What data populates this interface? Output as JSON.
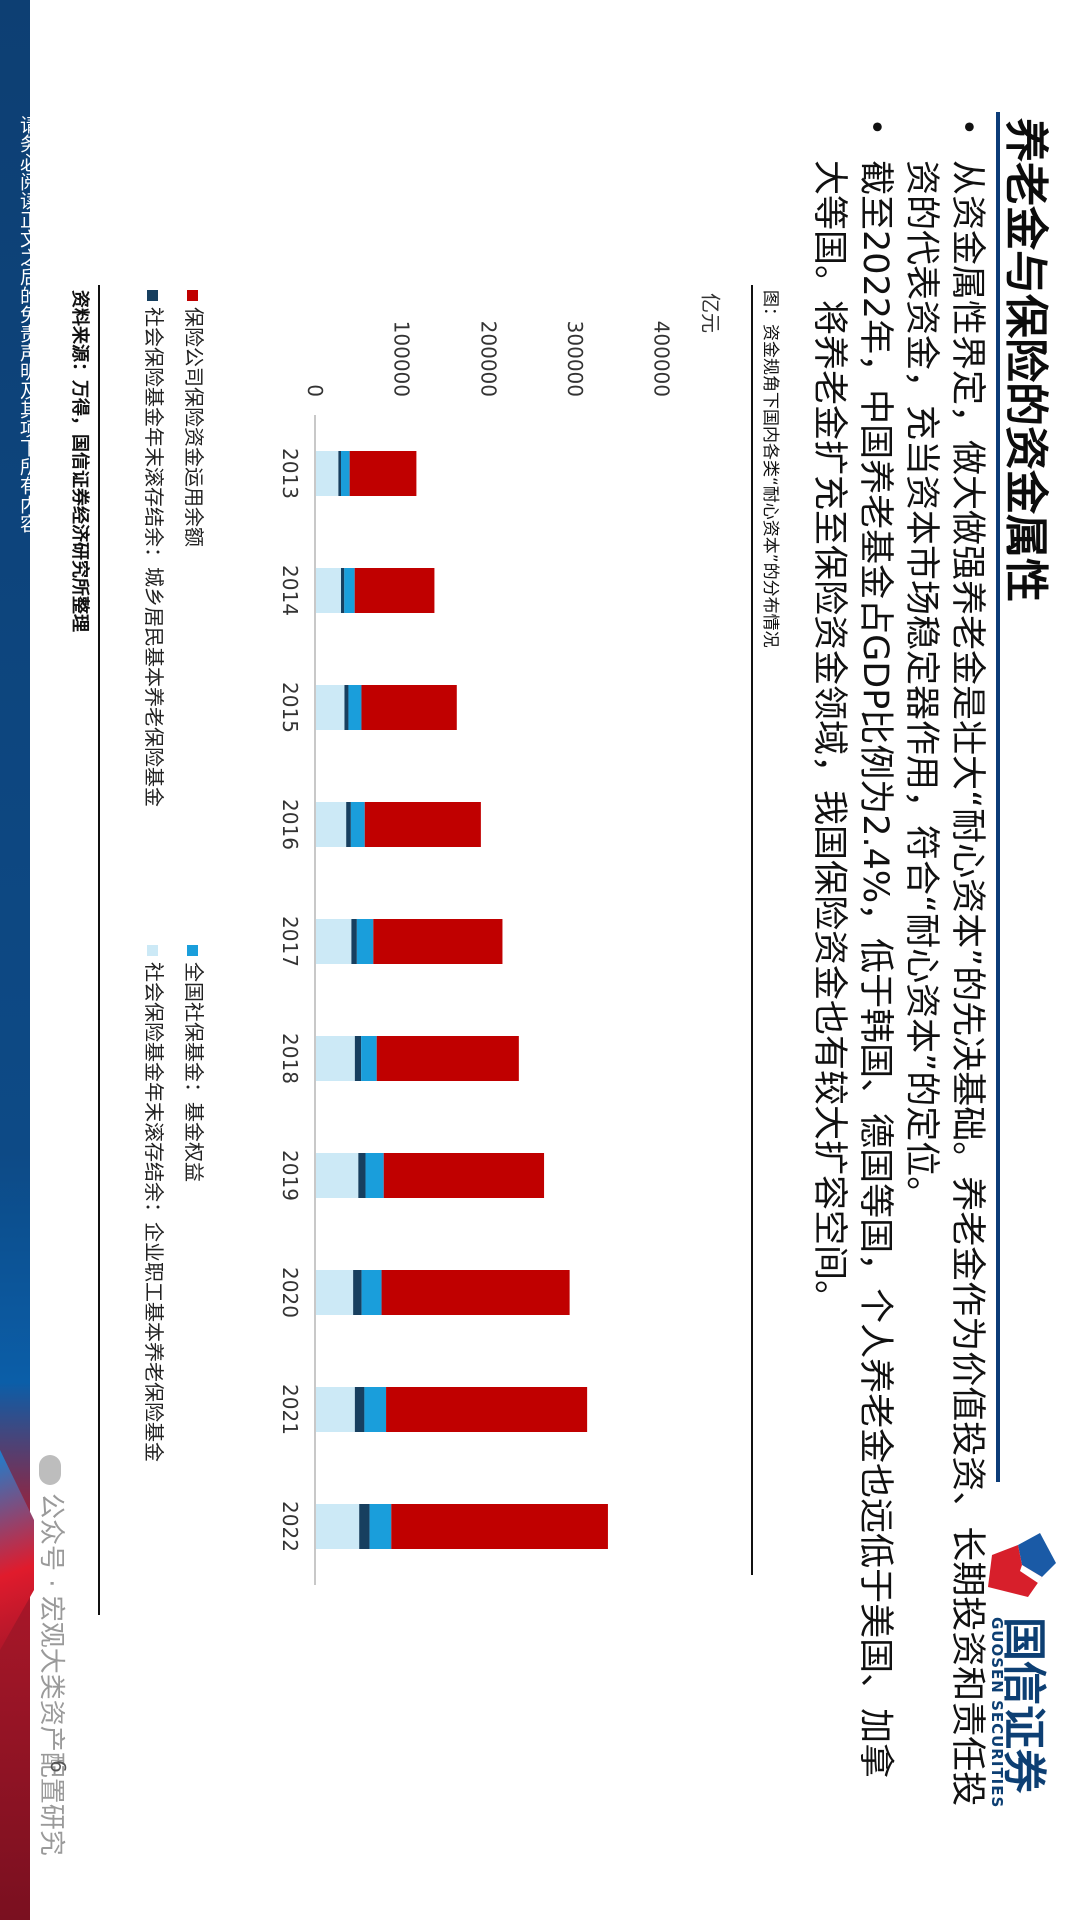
{
  "disclaimer": "请务必阅读正文之后的免责声明及其项下所有内容",
  "title": "养老金与保险的资金属性",
  "logo": {
    "cn": "国信证券",
    "en": "GUOSEN SECURITIES"
  },
  "bullets": [
    "从资金属性界定，做大做强养老金是壮大“耐心资本”的先决基础。养老金作为价值投资、长期投资和责任投资的代表资金，充当资本市场稳定器作用，符合“耐心资本”的定位。",
    "截至2022年，中国养老基金占GDP比例为2.4%，低于韩国、德国等国，个人养老金也远低于美国、加拿大等国。将养老金扩充至保险资金领域，我国保险资金也有较大扩容空间。"
  ],
  "chart_title": "图：资金规角下国内各类“耐心资本”的分布情况",
  "source": "资料来源：万得，国信证券经济研究所整理",
  "page_number": "6",
  "watermark": "公众号 · 宏观大类资产配置研究",
  "colors": {
    "insurance": "#c00000",
    "ssf": "#1a9edb",
    "urban_rural": "#173f5f",
    "enterprise": "#cce9f6"
  },
  "chart_data": {
    "type": "bar",
    "stacked": true,
    "orientation": "vertical",
    "ylabel": "亿元",
    "ylim": [
      0,
      450000
    ],
    "yticks": [
      "0",
      "100000",
      "200000",
      "300000",
      "400000"
    ],
    "ytick_values": [
      0,
      100000,
      200000,
      300000,
      400000
    ],
    "categories": [
      "2013",
      "2014",
      "2015",
      "2016",
      "2017",
      "2018",
      "2019",
      "2020",
      "2021",
      "2022"
    ],
    "series": [
      {
        "name": "社会保险基金年末滚存结余：企业职工基本养老保险基金",
        "color_key": "enterprise",
        "values": [
          27000,
          30000,
          34000,
          36000,
          42000,
          46000,
          50000,
          44000,
          46000,
          51000
        ]
      },
      {
        "name": "社会保险基金年末滚存结余：城乡居民基本养老保险基金",
        "color_key": "urban_rural",
        "values": [
          3000,
          3800,
          4600,
          5400,
          6300,
          7200,
          8300,
          9800,
          11000,
          12000
        ]
      },
      {
        "name": "全国社保基金：基金权益",
        "color_key": "ssf",
        "values": [
          10000,
          12000,
          15000,
          16000,
          19000,
          18000,
          21000,
          23000,
          25000,
          25000
        ]
      },
      {
        "name": "保险公司保险资金运用余额",
        "color_key": "insurance",
        "values": [
          77000,
          92000,
          110000,
          134000,
          149000,
          164000,
          185000,
          217000,
          232000,
          250000
        ]
      }
    ],
    "legend_position": "bottom",
    "grid": false
  }
}
